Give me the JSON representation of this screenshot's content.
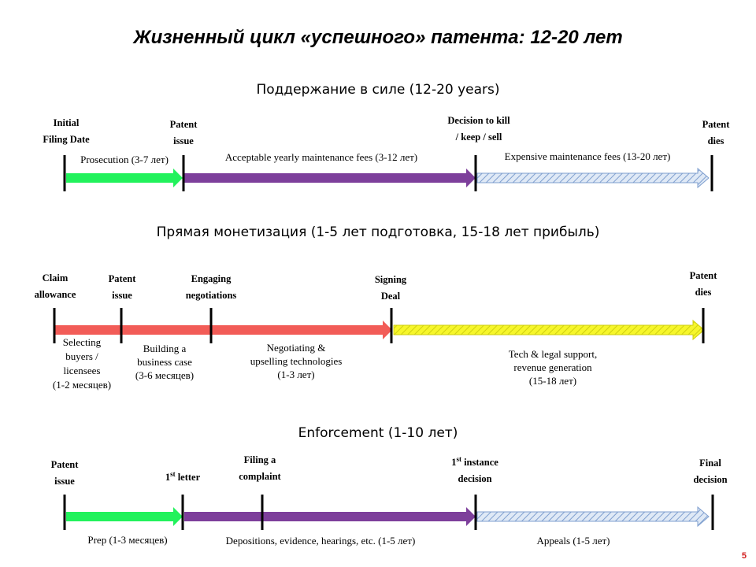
{
  "title": "Жизненный цикл «успешного» патента: 12-20 лет",
  "page_number": "5",
  "section1": {
    "heading": "Поддержание в силе (12-20 years)",
    "labels": {
      "initial_filing_1": "Initial",
      "initial_filing_2": "Filing Date",
      "patent_issue_1": "Patent",
      "patent_issue_2": "issue",
      "decision_1": "Decision to kill",
      "decision_2": "/ keep / sell",
      "patent_dies_1": "Patent",
      "patent_dies_2": "dies"
    },
    "captions": {
      "prosecution": "Prosecution (3-7 лет)",
      "acceptable_fees": "Acceptable yearly maintenance fees (3-12 лет)",
      "expensive_fees": "Expensive maintenance fees  (13-20 лет)"
    }
  },
  "section2": {
    "heading": "Прямая монетизация (1-5 лет подготовка, 15-18 лет прибыль)",
    "labels": {
      "claim_1": "Claim",
      "claim_2": "allowance",
      "patent_issue_1": "Patent",
      "patent_issue_2": "issue",
      "engaging_1": "Engaging",
      "engaging_2": "negotiations",
      "signing_1": "Signing",
      "signing_2": "Deal",
      "patent_dies_1": "Patent",
      "patent_dies_2": "dies"
    },
    "captions": {
      "selecting": [
        "Selecting",
        "buyers /",
        "licensees",
        "(1-2 месяцев)"
      ],
      "building": [
        "Building a",
        "business case",
        "(3-6 месяцев)"
      ],
      "negotiating": [
        "Negotiating &",
        "upselling technologies",
        "(1-3 лет)"
      ],
      "tech_support": [
        "Tech & legal support,",
        "revenue generation",
        "(15-18 лет)"
      ]
    }
  },
  "section3": {
    "heading": "Enforcement (1-10 лет)",
    "labels": {
      "patent_issue_1": "Patent",
      "patent_issue_2": "issue",
      "first_letter_num": "1",
      "first_letter_sup": "st",
      "first_letter_rest": " letter",
      "filing_1": "Filing a",
      "filing_2": "complaint",
      "instance_num": "1",
      "instance_sup": "st",
      "instance_rest": " instance",
      "instance_2": "decision",
      "final_1": "Final",
      "final_2": "decision"
    },
    "captions": {
      "prep": "Prep (1-3 месяцев)",
      "depositions": "Depositions, evidence, hearings, etc. (1-5 лет)",
      "appeals": "Appeals (1-5 лет)"
    }
  },
  "colors": {
    "green": "#22f25c",
    "purple": "#7d3f9b",
    "blue_hatch": "#a9c3e6",
    "red": "#f25c57",
    "yellow": "#f2f215",
    "marker": "#000000",
    "page_number": "#d21f1f"
  }
}
